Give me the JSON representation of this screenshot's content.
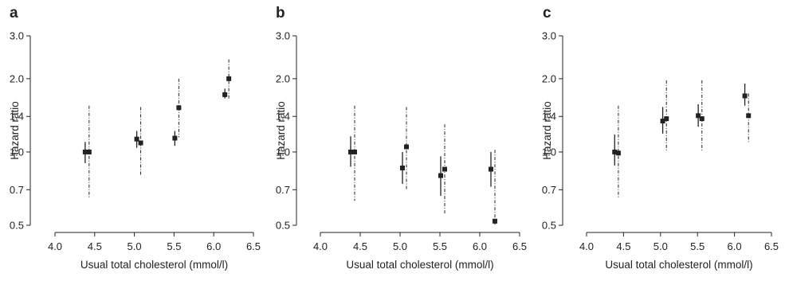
{
  "figure": {
    "panels": [
      {
        "letter": "a"
      },
      {
        "letter": "b"
      },
      {
        "letter": "c"
      }
    ]
  },
  "chart_data": [
    {
      "type": "scatter",
      "panel": "a",
      "xlabel": "Usual total cholesterol (mmol/l)",
      "ylabel": "Hazard ratio",
      "y_scale": "log",
      "xlim": [
        4.0,
        6.5
      ],
      "ylim": [
        0.5,
        3.0
      ],
      "xticks": [
        "4.0",
        "4.5",
        "5.0",
        "5.5",
        "6.0",
        "6.5"
      ],
      "yticks": [
        "0.5",
        "0.7",
        "1.0",
        "1.4",
        "2.0",
        "3.0"
      ],
      "series": [
        {
          "style": "solid-ci",
          "color": "#222222",
          "points": [
            {
              "x": 4.38,
              "y": 1.0,
              "lo": 0.9,
              "hi": 1.1
            },
            {
              "x": 5.03,
              "y": 1.13,
              "lo": 1.04,
              "hi": 1.22
            },
            {
              "x": 5.51,
              "y": 1.14,
              "lo": 1.06,
              "hi": 1.22
            },
            {
              "x": 6.14,
              "y": 1.72,
              "lo": 1.66,
              "hi": 1.82
            }
          ]
        },
        {
          "style": "dashed-ci",
          "color": "#222222",
          "points": [
            {
              "x": 4.43,
              "y": 1.0,
              "lo": 0.65,
              "hi": 1.55
            },
            {
              "x": 5.08,
              "y": 1.09,
              "lo": 0.8,
              "hi": 1.53
            },
            {
              "x": 5.56,
              "y": 1.52,
              "lo": 1.15,
              "hi": 2.0
            },
            {
              "x": 6.19,
              "y": 2.0,
              "lo": 1.65,
              "hi": 2.4
            }
          ]
        }
      ]
    },
    {
      "type": "scatter",
      "panel": "b",
      "xlabel": "Usual total cholesterol (mmol/l)",
      "ylabel": "Hazard ratio",
      "y_scale": "log",
      "xlim": [
        4.0,
        6.5
      ],
      "ylim": [
        0.5,
        3.0
      ],
      "xticks": [
        "4.0",
        "4.5",
        "5.0",
        "5.5",
        "6.0",
        "6.5"
      ],
      "yticks": [
        "0.5",
        "0.7",
        "1.0",
        "1.4",
        "2.0",
        "3.0"
      ],
      "series": [
        {
          "style": "solid-ci",
          "color": "#222222",
          "points": [
            {
              "x": 4.38,
              "y": 1.0,
              "lo": 0.87,
              "hi": 1.16
            },
            {
              "x": 5.03,
              "y": 0.86,
              "lo": 0.74,
              "hi": 1.0
            },
            {
              "x": 5.51,
              "y": 0.8,
              "lo": 0.66,
              "hi": 0.96
            },
            {
              "x": 6.14,
              "y": 0.85,
              "lo": 0.72,
              "hi": 1.0
            }
          ]
        },
        {
          "style": "dashed-ci",
          "color": "#222222",
          "points": [
            {
              "x": 4.43,
              "y": 1.0,
              "lo": 0.63,
              "hi": 1.55
            },
            {
              "x": 5.08,
              "y": 1.05,
              "lo": 0.7,
              "hi": 1.53
            },
            {
              "x": 5.56,
              "y": 0.85,
              "lo": 0.56,
              "hi": 1.3
            },
            {
              "x": 6.19,
              "y": 0.52,
              "lo": 0.5,
              "hi": 1.02
            }
          ]
        }
      ]
    },
    {
      "type": "scatter",
      "panel": "c",
      "xlabel": "Usual total cholesterol (mmol/l)",
      "ylabel": "Hazard ratio",
      "y_scale": "log",
      "xlim": [
        4.0,
        6.5
      ],
      "ylim": [
        0.5,
        3.0
      ],
      "xticks": [
        "4.0",
        "4.5",
        "5.0",
        "5.5",
        "6.0",
        "6.5"
      ],
      "yticks": [
        "0.5",
        "0.7",
        "1.0",
        "1.4",
        "2.0",
        "3.0"
      ],
      "series": [
        {
          "style": "solid-ci",
          "color": "#222222",
          "points": [
            {
              "x": 4.38,
              "y": 1.0,
              "lo": 0.88,
              "hi": 1.18
            },
            {
              "x": 5.03,
              "y": 1.34,
              "lo": 1.19,
              "hi": 1.53
            },
            {
              "x": 5.51,
              "y": 1.41,
              "lo": 1.27,
              "hi": 1.57
            },
            {
              "x": 6.14,
              "y": 1.7,
              "lo": 1.55,
              "hi": 1.91
            }
          ]
        },
        {
          "style": "dashed-ci",
          "color": "#222222",
          "points": [
            {
              "x": 4.43,
              "y": 0.99,
              "lo": 0.65,
              "hi": 1.55
            },
            {
              "x": 5.08,
              "y": 1.37,
              "lo": 1.0,
              "hi": 1.97
            },
            {
              "x": 5.56,
              "y": 1.37,
              "lo": 1.0,
              "hi": 1.97
            },
            {
              "x": 6.19,
              "y": 1.41,
              "lo": 1.1,
              "hi": 1.74
            }
          ]
        }
      ]
    }
  ]
}
